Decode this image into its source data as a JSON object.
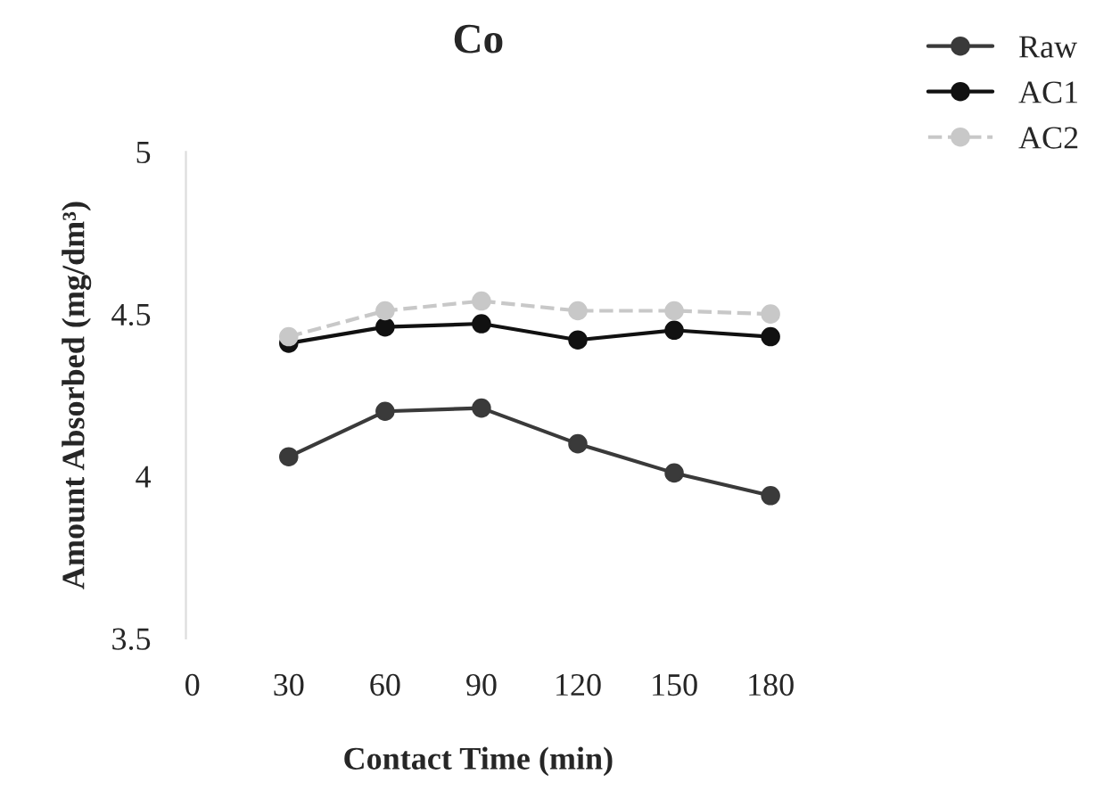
{
  "chart_data": {
    "type": "line",
    "title": "Co",
    "xlabel": "Contact Time (min)",
    "ylabel": "Amount Absorbed (mg/dm³)",
    "x": [
      30,
      60,
      90,
      120,
      150,
      180
    ],
    "series": [
      {
        "name": "Raw",
        "color": "#3a3a3a",
        "values": [
          4.06,
          4.2,
          4.21,
          4.1,
          4.01,
          3.94
        ]
      },
      {
        "name": "AC1",
        "color": "#111111",
        "values": [
          4.41,
          4.46,
          4.47,
          4.42,
          4.45,
          4.43
        ]
      },
      {
        "name": "AC2",
        "color": "#c8c8c8",
        "values": [
          4.43,
          4.51,
          4.54,
          4.51,
          4.51,
          4.5
        ],
        "line_style": "dashed"
      }
    ],
    "xlim": [
      -2,
      180
    ],
    "xticks": [
      0,
      30,
      60,
      90,
      120,
      150,
      180
    ],
    "ylim": [
      3.5,
      5
    ],
    "yticks": [
      3.5,
      4,
      4.5,
      5
    ],
    "grid": false,
    "legend": "top right",
    "marker": "circle",
    "line_style": "solid"
  }
}
